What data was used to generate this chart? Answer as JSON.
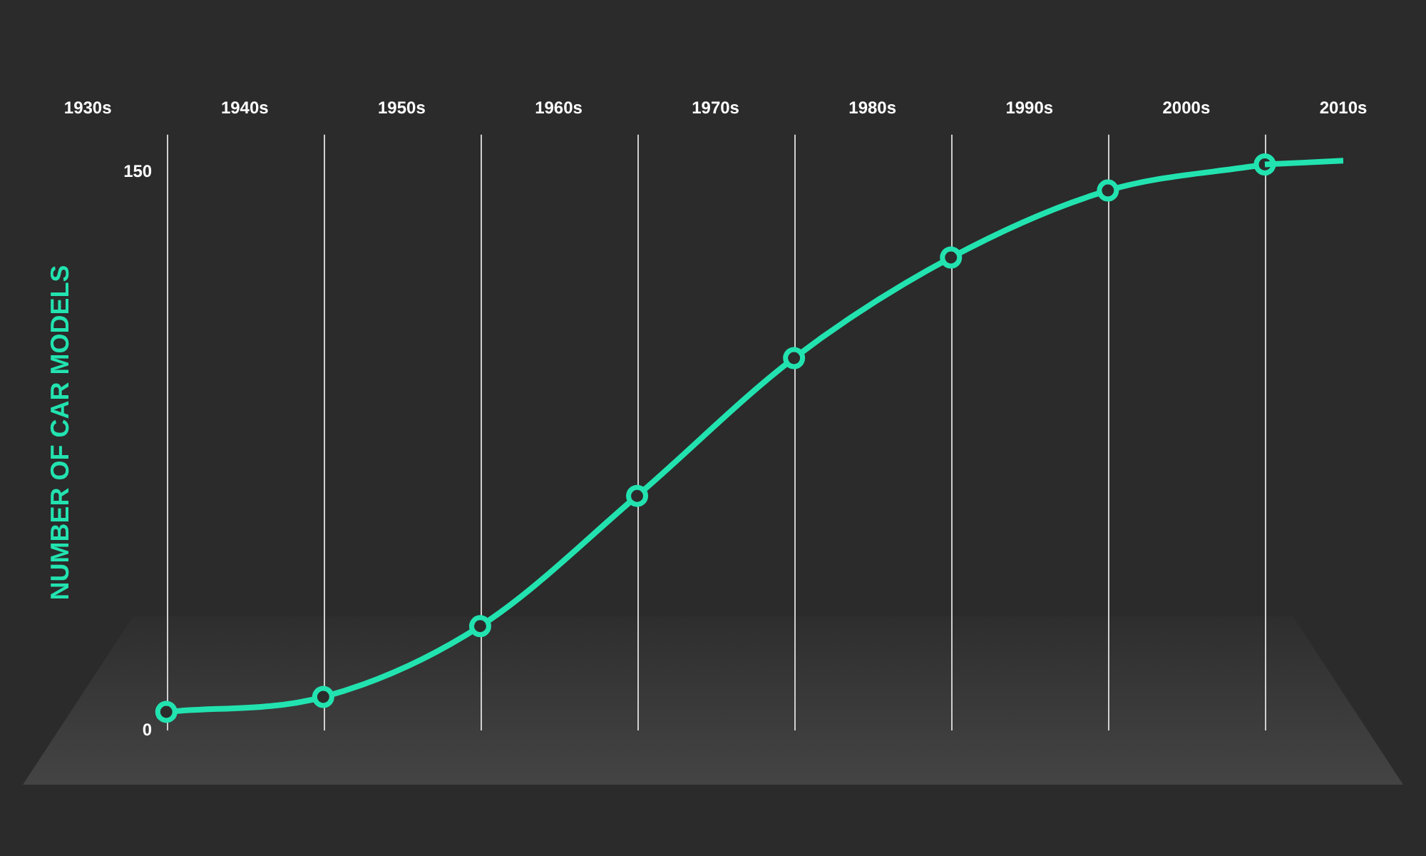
{
  "chart_data": {
    "type": "line",
    "ylabel": "NUMBER OF CAR MODELS",
    "categories": [
      "1930s",
      null,
      "1940s",
      null,
      "1950s",
      null,
      "1960s",
      null,
      "1970s",
      null,
      "1980s",
      null,
      "1990s",
      null,
      "2000s",
      null,
      "2010s"
    ],
    "series": [
      {
        "color": "#22e3b0",
        "values": [
          null,
          null,
          null,
          null,
          null,
          null,
          null,
          null,
          null,
          null,
          null,
          null,
          null,
          null,
          null,
          152,
          153
        ],
        "marker": "none"
      },
      {
        "color": "#22e3b0",
        "values": [
          null,
          5,
          null,
          9,
          null,
          28,
          null,
          63,
          null,
          100,
          null,
          127,
          null,
          145,
          null,
          152,
          null
        ],
        "marker": "circle"
      }
    ],
    "ylim": [
      0,
      160
    ],
    "yticks": [
      0,
      150
    ],
    "grid": "x",
    "legend": false
  }
}
